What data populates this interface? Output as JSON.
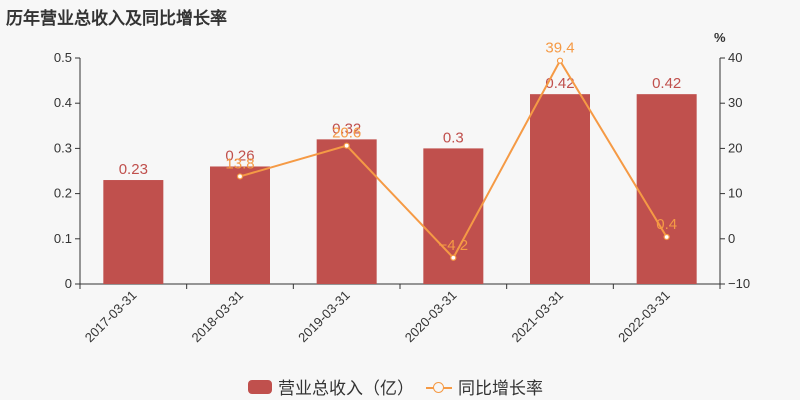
{
  "title": "历年营业总收入及同比增长率",
  "legend": {
    "bar_label": "营业总收入（亿）",
    "line_label": "同比增长率"
  },
  "colors": {
    "bar": "#c0504d",
    "line": "#f59a45"
  },
  "chart_data": {
    "type": "bar+line",
    "title": "历年营业总收入及同比增长率",
    "categories": [
      "2017-03-31",
      "2018-03-31",
      "2019-03-31",
      "2020-03-31",
      "2021-03-31",
      "2022-03-31"
    ],
    "series": [
      {
        "name": "营业总收入（亿）",
        "type": "bar",
        "axis": "left",
        "values": [
          0.23,
          0.26,
          0.32,
          0.3,
          0.42,
          0.42
        ]
      },
      {
        "name": "同比增长率",
        "type": "line",
        "axis": "right",
        "values": [
          null,
          13.8,
          20.6,
          -4.2,
          39.4,
          0.4
        ]
      }
    ],
    "left_axis": {
      "ylim": [
        0,
        0.5
      ],
      "ticks": [
        "0",
        "0.1",
        "0.2",
        "0.3",
        "0.4",
        "0.5"
      ]
    },
    "right_axis": {
      "label": "%",
      "ylim": [
        -10,
        40
      ],
      "ticks": [
        "−10",
        "0",
        "10",
        "20",
        "30",
        "40"
      ]
    },
    "legend_position": "bottom",
    "grid": false
  }
}
